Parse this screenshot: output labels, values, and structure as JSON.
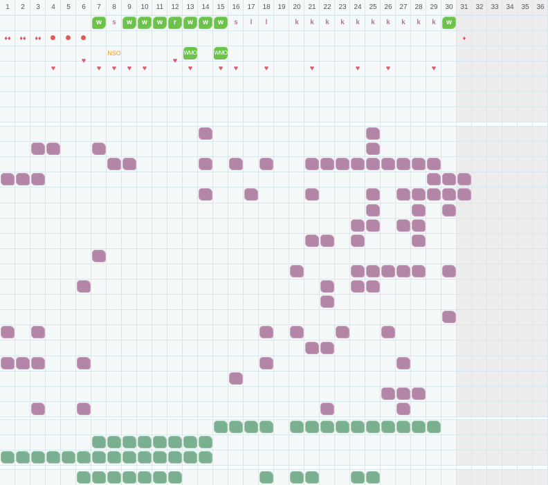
{
  "day_headers": [
    "1",
    "2",
    "3",
    "4",
    "5",
    "6",
    "7",
    "8",
    "9",
    "10",
    "11",
    "12",
    "13",
    "14",
    "15",
    "16",
    "17",
    "18",
    "19",
    "20",
    "21",
    "22",
    "23",
    "24",
    "25",
    "26",
    "27",
    "28",
    "29",
    "30",
    "31",
    "32",
    "33",
    "34",
    "35",
    "36"
  ],
  "active_days": 30,
  "colors": {
    "grid_line": "#d6e8ec",
    "cell_bg": "#f5f9fa",
    "inactive_bg": "#ededed",
    "section_gap": "#ffffff",
    "green_tag": "#6cc24a",
    "purple_blob": "#b385a7",
    "green_blob": "#7ab090",
    "pink_text": "#b07a9a",
    "heart": "#e05a70",
    "orange_text": "#e0a020"
  },
  "section1": {
    "row1_letters": [
      {
        "day": 7,
        "text": "w",
        "style": "tag"
      },
      {
        "day": 8,
        "text": "s",
        "style": "plain"
      },
      {
        "day": 9,
        "text": "w",
        "style": "tag"
      },
      {
        "day": 10,
        "text": "w",
        "style": "tag"
      },
      {
        "day": 11,
        "text": "w",
        "style": "tag"
      },
      {
        "day": 12,
        "text": "r",
        "style": "tag"
      },
      {
        "day": 13,
        "text": "w",
        "style": "tag"
      },
      {
        "day": 14,
        "text": "w",
        "style": "tag"
      },
      {
        "day": 15,
        "text": "w",
        "style": "tag"
      },
      {
        "day": 16,
        "text": "s",
        "style": "plain"
      },
      {
        "day": 17,
        "text": "l",
        "style": "plain"
      },
      {
        "day": 18,
        "text": "l",
        "style": "plain"
      },
      {
        "day": 20,
        "text": "k",
        "style": "plain"
      },
      {
        "day": 21,
        "text": "k",
        "style": "plain"
      },
      {
        "day": 22,
        "text": "k",
        "style": "plain"
      },
      {
        "day": 23,
        "text": "k",
        "style": "plain"
      },
      {
        "day": 24,
        "text": "k",
        "style": "plain"
      },
      {
        "day": 25,
        "text": "k",
        "style": "plain"
      },
      {
        "day": 26,
        "text": "k",
        "style": "plain"
      },
      {
        "day": 27,
        "text": "k",
        "style": "plain"
      },
      {
        "day": 28,
        "text": "k",
        "style": "plain"
      },
      {
        "day": 29,
        "text": "k",
        "style": "plain"
      },
      {
        "day": 30,
        "text": "w",
        "style": "tag"
      }
    ],
    "row2_drops": [
      {
        "day": 1,
        "glyph": "♦♦"
      },
      {
        "day": 2,
        "glyph": "♦♦"
      },
      {
        "day": 3,
        "glyph": "♦♦"
      },
      {
        "day": 31,
        "glyph": "♦"
      }
    ],
    "row2_dots": [
      4,
      5,
      6
    ],
    "row3_labels": [
      {
        "day": 8,
        "text": "NSO",
        "style": "plain"
      },
      {
        "day": 13,
        "text": "WMO",
        "style": "tag"
      },
      {
        "day": 15,
        "text": "WMO",
        "style": "tag"
      }
    ],
    "row4_hearts": [
      {
        "day": 4,
        "row": 4
      },
      {
        "day": 6,
        "row": 3.5
      },
      {
        "day": 7,
        "row": 4
      },
      {
        "day": 8,
        "row": 4
      },
      {
        "day": 9,
        "row": 4
      },
      {
        "day": 10,
        "row": 4
      },
      {
        "day": 12,
        "row": 3.5
      },
      {
        "day": 13,
        "row": 4
      },
      {
        "day": 15,
        "row": 4
      },
      {
        "day": 16,
        "row": 4
      },
      {
        "day": 18,
        "row": 4
      },
      {
        "day": 21,
        "row": 4
      },
      {
        "day": 24,
        "row": 4
      },
      {
        "day": 26,
        "row": 4
      },
      {
        "day": 29,
        "row": 4
      }
    ],
    "heart_glyph": "♥"
  },
  "section2_marks": [
    [
      14,
      1
    ],
    [
      25,
      1
    ],
    [
      3,
      2
    ],
    [
      4,
      2
    ],
    [
      7,
      2
    ],
    [
      25,
      2
    ],
    [
      8,
      3
    ],
    [
      9,
      3
    ],
    [
      14,
      3
    ],
    [
      16,
      3
    ],
    [
      18,
      3
    ],
    [
      21,
      3
    ],
    [
      22,
      3
    ],
    [
      23,
      3
    ],
    [
      24,
      3
    ],
    [
      25,
      3
    ],
    [
      26,
      3
    ],
    [
      27,
      3
    ],
    [
      28,
      3
    ],
    [
      29,
      3
    ],
    [
      1,
      4
    ],
    [
      2,
      4
    ],
    [
      3,
      4
    ],
    [
      29,
      4
    ],
    [
      30,
      4
    ],
    [
      31,
      4
    ],
    [
      14,
      5
    ],
    [
      17,
      5
    ],
    [
      21,
      5
    ],
    [
      25,
      5
    ],
    [
      27,
      5
    ],
    [
      28,
      5
    ],
    [
      29,
      5
    ],
    [
      30,
      5
    ],
    [
      31,
      5
    ],
    [
      25,
      6
    ],
    [
      28,
      6
    ],
    [
      30,
      6
    ],
    [
      24,
      7
    ],
    [
      25,
      7
    ],
    [
      27,
      7
    ],
    [
      28,
      7
    ],
    [
      21,
      8
    ],
    [
      22,
      8
    ],
    [
      24,
      8
    ],
    [
      28,
      8
    ],
    [
      7,
      9
    ],
    [
      20,
      10
    ],
    [
      24,
      10
    ],
    [
      25,
      10
    ],
    [
      26,
      10
    ],
    [
      27,
      10
    ],
    [
      28,
      10
    ],
    [
      30,
      10
    ],
    [
      6,
      11
    ],
    [
      22,
      11
    ],
    [
      24,
      11
    ],
    [
      25,
      11
    ],
    [
      22,
      12
    ],
    [
      30,
      13
    ],
    [
      1,
      14
    ],
    [
      3,
      14
    ],
    [
      18,
      14
    ],
    [
      20,
      14
    ],
    [
      23,
      14
    ],
    [
      26,
      14
    ],
    [
      21,
      15
    ],
    [
      22,
      15
    ],
    [
      1,
      16
    ],
    [
      2,
      16
    ],
    [
      3,
      16
    ],
    [
      6,
      16
    ],
    [
      18,
      16
    ],
    [
      27,
      16
    ],
    [
      16,
      17
    ],
    [
      26,
      18
    ],
    [
      27,
      18
    ],
    [
      28,
      18
    ],
    [
      3,
      19
    ],
    [
      6,
      19
    ],
    [
      22,
      19
    ],
    [
      27,
      19
    ]
  ],
  "section3_marks": [
    [
      15,
      1
    ],
    [
      16,
      1
    ],
    [
      17,
      1
    ],
    [
      18,
      1
    ],
    [
      20,
      1
    ],
    [
      21,
      1
    ],
    [
      22,
      1
    ],
    [
      23,
      1
    ],
    [
      24,
      1
    ],
    [
      25,
      1
    ],
    [
      26,
      1
    ],
    [
      27,
      1
    ],
    [
      28,
      1
    ],
    [
      29,
      1
    ],
    [
      7,
      2
    ],
    [
      8,
      2
    ],
    [
      9,
      2
    ],
    [
      10,
      2
    ],
    [
      11,
      2
    ],
    [
      12,
      2
    ],
    [
      13,
      2
    ],
    [
      14,
      2
    ],
    [
      1,
      3
    ],
    [
      2,
      3
    ],
    [
      3,
      3
    ],
    [
      4,
      3
    ],
    [
      5,
      3
    ],
    [
      6,
      3
    ],
    [
      7,
      3
    ],
    [
      8,
      3
    ],
    [
      9,
      3
    ],
    [
      10,
      3
    ],
    [
      11,
      3
    ],
    [
      12,
      3
    ],
    [
      13,
      3
    ],
    [
      14,
      3
    ]
  ],
  "section4_marks": [
    [
      6,
      1
    ],
    [
      7,
      1
    ],
    [
      8,
      1
    ],
    [
      9,
      1
    ],
    [
      10,
      1
    ],
    [
      11,
      1
    ],
    [
      12,
      1
    ],
    [
      18,
      1
    ],
    [
      20,
      1
    ],
    [
      21,
      1
    ],
    [
      24,
      1
    ],
    [
      25,
      1
    ]
  ]
}
